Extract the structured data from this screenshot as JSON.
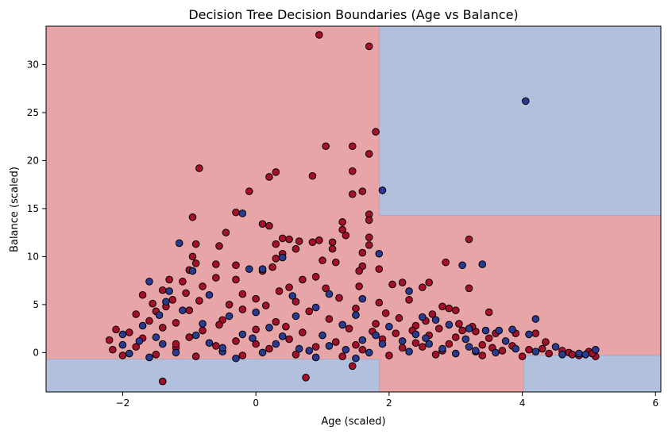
{
  "chart_data": {
    "type": "scatter",
    "title": "Decision Tree Decision Boundaries (Age vs Balance)",
    "xlabel": "Age (scaled)",
    "ylabel": "Balance (scaled)",
    "xlim": [
      -3.15,
      6.08
    ],
    "ylim": [
      -4.1,
      34.0
    ],
    "x_ticks": [
      -2,
      0,
      2,
      4,
      6
    ],
    "y_ticks": [
      0,
      5,
      10,
      15,
      20,
      25,
      30
    ],
    "grid": false,
    "legend": "none",
    "colors": {
      "region_red": "#e8a5a8",
      "region_blue": "#b1c0dd",
      "class_red": "#a50f2b",
      "class_blue": "#2a3a8f",
      "point_edge": "#000000"
    },
    "regions": [
      {
        "class": "blue",
        "x": [
          1.85,
          6.08
        ],
        "y": [
          14.3,
          34.0
        ]
      },
      {
        "class": "blue",
        "x": [
          4.02,
          6.08
        ],
        "y": [
          -4.1,
          -0.3
        ]
      },
      {
        "class": "blue",
        "x": [
          -3.15,
          1.85
        ],
        "y": [
          -4.1,
          -0.7
        ]
      }
    ],
    "series": [
      {
        "class": "red",
        "points": [
          [
            0.95,
            33.1
          ],
          [
            1.7,
            31.9
          ],
          [
            1.8,
            23.0
          ],
          [
            1.7,
            20.7
          ],
          [
            1.05,
            21.5
          ],
          [
            1.45,
            21.5
          ],
          [
            -0.85,
            19.2
          ],
          [
            0.3,
            18.8
          ],
          [
            0.2,
            18.3
          ],
          [
            0.85,
            18.4
          ],
          [
            1.45,
            18.9
          ],
          [
            -0.1,
            16.8
          ],
          [
            1.45,
            16.5
          ],
          [
            1.6,
            16.8
          ],
          [
            -0.95,
            14.1
          ],
          [
            -0.3,
            14.6
          ],
          [
            1.7,
            14.4
          ],
          [
            1.7,
            13.8
          ],
          [
            1.3,
            13.6
          ],
          [
            0.1,
            13.4
          ],
          [
            0.2,
            13.2
          ],
          [
            1.3,
            12.8
          ],
          [
            -0.45,
            12.5
          ],
          [
            1.7,
            12.0
          ],
          [
            0.4,
            11.9
          ],
          [
            0.5,
            11.8
          ],
          [
            0.95,
            11.7
          ],
          [
            0.85,
            11.5
          ],
          [
            0.3,
            11.3
          ],
          [
            0.65,
            11.6
          ],
          [
            -0.9,
            11.3
          ],
          [
            -0.55,
            11.1
          ],
          [
            1.15,
            11.5
          ],
          [
            1.35,
            12.2
          ],
          [
            1.7,
            11.2
          ],
          [
            1.6,
            10.4
          ],
          [
            1.15,
            10.8
          ],
          [
            3.2,
            11.8
          ],
          [
            -0.95,
            10.0
          ],
          [
            0.4,
            10.3
          ],
          [
            0.6,
            10.8
          ],
          [
            0.3,
            9.8
          ],
          [
            1.0,
            9.6
          ],
          [
            2.85,
            9.4
          ],
          [
            -0.9,
            9.3
          ],
          [
            -0.6,
            9.2
          ],
          [
            -0.3,
            9.1
          ],
          [
            1.2,
            9.4
          ],
          [
            1.6,
            9.0
          ],
          [
            -1.0,
            8.6
          ],
          [
            0.1,
            8.5
          ],
          [
            0.25,
            8.9
          ],
          [
            -1.3,
            7.6
          ],
          [
            -1.1,
            7.4
          ],
          [
            -0.6,
            7.8
          ],
          [
            -0.3,
            7.6
          ],
          [
            0.7,
            7.6
          ],
          [
            0.9,
            7.9
          ],
          [
            1.55,
            8.5
          ],
          [
            1.85,
            8.7
          ],
          [
            2.2,
            7.3
          ],
          [
            2.6,
            7.3
          ],
          [
            3.2,
            6.7
          ],
          [
            -1.7,
            6.0
          ],
          [
            -1.4,
            6.5
          ],
          [
            -0.8,
            6.9
          ],
          [
            0.5,
            6.8
          ],
          [
            1.05,
            6.7
          ],
          [
            1.55,
            6.9
          ],
          [
            2.05,
            7.1
          ],
          [
            2.5,
            6.8
          ],
          [
            -1.55,
            5.1
          ],
          [
            -1.25,
            5.5
          ],
          [
            -0.85,
            5.4
          ],
          [
            0.0,
            5.6
          ],
          [
            0.6,
            5.3
          ],
          [
            1.25,
            5.7
          ],
          [
            2.3,
            5.5
          ],
          [
            2.8,
            4.8
          ],
          [
            3.0,
            4.4
          ],
          [
            3.5,
            4.2
          ],
          [
            -1.8,
            4.0
          ],
          [
            -1.5,
            4.3
          ],
          [
            -1.0,
            4.4
          ],
          [
            -0.2,
            4.5
          ],
          [
            0.8,
            4.3
          ],
          [
            1.5,
            4.6
          ],
          [
            2.15,
            3.6
          ],
          [
            2.65,
            4.0
          ],
          [
            2.9,
            4.6
          ],
          [
            -1.6,
            3.3
          ],
          [
            -1.2,
            3.1
          ],
          [
            -0.5,
            3.4
          ],
          [
            0.3,
            3.2
          ],
          [
            1.1,
            3.5
          ],
          [
            1.8,
            3.0
          ],
          [
            2.4,
            2.8
          ],
          [
            2.75,
            2.5
          ],
          [
            3.1,
            2.3
          ],
          [
            3.3,
            2.2
          ],
          [
            3.6,
            2.0
          ],
          [
            3.9,
            2.0
          ],
          [
            -2.1,
            2.4
          ],
          [
            -1.9,
            2.1
          ],
          [
            -1.4,
            2.6
          ],
          [
            -0.8,
            2.3
          ],
          [
            0.0,
            2.4
          ],
          [
            0.7,
            2.1
          ],
          [
            1.4,
            2.5
          ],
          [
            2.1,
            2.0
          ],
          [
            2.6,
            1.8
          ],
          [
            3.0,
            1.6
          ],
          [
            3.5,
            1.5
          ],
          [
            4.2,
            2.0
          ],
          [
            4.35,
            1.1
          ],
          [
            -2.2,
            1.3
          ],
          [
            -1.7,
            1.5
          ],
          [
            -1.0,
            1.6
          ],
          [
            -0.3,
            1.2
          ],
          [
            0.5,
            1.4
          ],
          [
            1.2,
            1.1
          ],
          [
            1.9,
            1.4
          ],
          [
            2.4,
            1.0
          ],
          [
            2.9,
            0.9
          ],
          [
            3.4,
            0.8
          ],
          [
            3.85,
            0.7
          ],
          [
            4.3,
            0.4
          ],
          [
            4.6,
            0.2
          ],
          [
            -2.15,
            0.3
          ],
          [
            -1.8,
            0.6
          ],
          [
            -1.2,
            0.5
          ],
          [
            -0.6,
            0.7
          ],
          [
            0.2,
            0.4
          ],
          [
            0.9,
            0.6
          ],
          [
            1.6,
            0.3
          ],
          [
            2.2,
            0.5
          ],
          [
            2.8,
            0.2
          ],
          [
            3.3,
            0.1
          ],
          [
            3.7,
            0.2
          ],
          [
            4.1,
            0.3
          ],
          [
            4.4,
            -0.1
          ],
          [
            4.7,
            0.0
          ],
          [
            5.1,
            -0.4
          ],
          [
            5.0,
            0.1
          ],
          [
            -2.0,
            -0.3
          ],
          [
            -1.5,
            -0.2
          ],
          [
            -0.9,
            -0.4
          ],
          [
            -0.2,
            -0.3
          ],
          [
            0.6,
            -0.2
          ],
          [
            1.3,
            -0.4
          ],
          [
            2.0,
            -0.3
          ],
          [
            2.7,
            -0.2
          ],
          [
            3.4,
            -0.3
          ],
          [
            4.0,
            -0.4
          ],
          [
            -1.4,
            -3.0
          ],
          [
            0.75,
            -2.6
          ],
          [
            1.45,
            -1.4
          ],
          [
            -1.35,
            4.8
          ],
          [
            -1.05,
            6.2
          ],
          [
            -0.2,
            6.1
          ],
          [
            0.35,
            6.4
          ],
          [
            1.85,
            5.2
          ],
          [
            2.55,
            3.3
          ],
          [
            3.05,
            3.0
          ],
          [
            -0.55,
            2.9
          ],
          [
            0.45,
            2.7
          ],
          [
            1.75,
            2.2
          ],
          [
            2.35,
            2.3
          ],
          [
            -0.4,
            5.0
          ],
          [
            0.15,
            4.9
          ],
          [
            1.95,
            4.1
          ],
          [
            3.25,
            2.7
          ],
          [
            -1.2,
            0.9
          ],
          [
            0.0,
            0.9
          ],
          [
            1.5,
            0.8
          ],
          [
            2.5,
            0.6
          ],
          [
            3.55,
            0.5
          ],
          [
            4.75,
            -0.2
          ],
          [
            4.85,
            -0.3
          ],
          [
            5.05,
            -0.1
          ]
        ]
      },
      {
        "class": "blue",
        "points": [
          [
            4.05,
            26.2
          ],
          [
            1.9,
            16.9
          ],
          [
            -0.2,
            14.5
          ],
          [
            -1.15,
            11.4
          ],
          [
            0.4,
            9.9
          ],
          [
            1.85,
            10.3
          ],
          [
            -0.1,
            8.7
          ],
          [
            0.1,
            8.7
          ],
          [
            -0.95,
            8.5
          ],
          [
            -1.6,
            7.4
          ],
          [
            3.4,
            9.2
          ],
          [
            3.1,
            9.1
          ],
          [
            -1.3,
            6.4
          ],
          [
            -0.7,
            6.0
          ],
          [
            0.55,
            5.9
          ],
          [
            1.1,
            6.1
          ],
          [
            1.6,
            5.6
          ],
          [
            2.3,
            6.4
          ],
          [
            -1.45,
            3.9
          ],
          [
            -0.4,
            3.8
          ],
          [
            0.6,
            3.8
          ],
          [
            1.5,
            3.9
          ],
          [
            2.5,
            3.7
          ],
          [
            2.7,
            3.4
          ],
          [
            2.9,
            2.9
          ],
          [
            3.2,
            2.5
          ],
          [
            3.45,
            2.3
          ],
          [
            3.65,
            2.3
          ],
          [
            3.85,
            2.4
          ],
          [
            4.2,
            3.5
          ],
          [
            4.1,
            1.9
          ],
          [
            -2.0,
            1.9
          ],
          [
            -1.5,
            1.6
          ],
          [
            -0.9,
            1.8
          ],
          [
            -0.2,
            1.9
          ],
          [
            0.4,
            1.7
          ],
          [
            1.0,
            1.8
          ],
          [
            1.8,
            1.8
          ],
          [
            2.55,
            1.5
          ],
          [
            3.15,
            1.4
          ],
          [
            3.75,
            1.2
          ],
          [
            4.5,
            0.6
          ],
          [
            -2.0,
            0.8
          ],
          [
            -1.4,
            0.9
          ],
          [
            -0.7,
            1.0
          ],
          [
            0.3,
            0.9
          ],
          [
            1.1,
            0.7
          ],
          [
            1.9,
            0.9
          ],
          [
            2.6,
            0.9
          ],
          [
            3.2,
            0.6
          ],
          [
            3.9,
            0.4
          ],
          [
            4.2,
            0.1
          ],
          [
            -1.9,
            -0.1
          ],
          [
            -1.2,
            0.0
          ],
          [
            -0.5,
            0.1
          ],
          [
            0.1,
            0.0
          ],
          [
            0.8,
            0.2
          ],
          [
            1.7,
            0.0
          ],
          [
            2.3,
            0.1
          ],
          [
            3.0,
            -0.1
          ],
          [
            3.6,
            0.0
          ],
          [
            4.6,
            -0.2
          ],
          [
            4.85,
            -0.1
          ],
          [
            4.95,
            -0.2
          ],
          [
            5.1,
            0.3
          ],
          [
            -1.6,
            -0.5
          ],
          [
            -0.3,
            -0.6
          ],
          [
            0.9,
            -0.5
          ],
          [
            1.5,
            -0.6
          ],
          [
            -1.7,
            2.8
          ],
          [
            -0.8,
            3.0
          ],
          [
            0.2,
            2.6
          ],
          [
            1.3,
            2.9
          ],
          [
            2.0,
            2.7
          ],
          [
            -1.1,
            4.4
          ],
          [
            0.0,
            4.2
          ],
          [
            0.9,
            4.7
          ],
          [
            -1.35,
            5.3
          ],
          [
            -0.5,
            0.5
          ],
          [
            0.65,
            0.4
          ],
          [
            1.35,
            0.3
          ],
          [
            2.8,
            0.4
          ],
          [
            3.3,
            0.2
          ],
          [
            2.2,
            1.2
          ],
          [
            -1.75,
            1.2
          ],
          [
            -0.05,
            1.5
          ],
          [
            1.6,
            1.3
          ],
          [
            2.4,
            1.9
          ]
        ]
      }
    ]
  }
}
